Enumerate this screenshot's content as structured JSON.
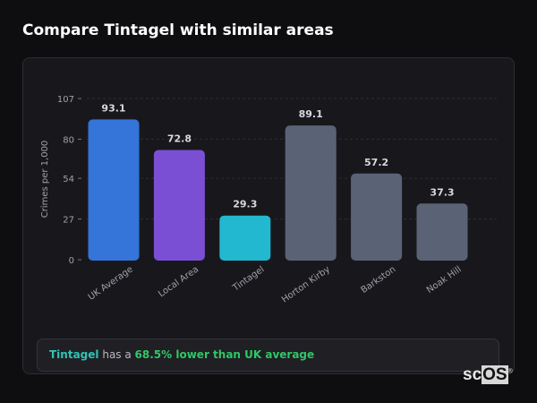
{
  "title": "Compare Tintagel with similar areas",
  "chart_data": {
    "type": "bar",
    "categories": [
      "UK Average",
      "Local Area",
      "Tintagel",
      "Horton Kirby",
      "Barkston",
      "Noak Hill"
    ],
    "values": [
      93.1,
      72.8,
      29.3,
      89.1,
      57.2,
      37.3
    ],
    "value_labels": [
      "93.1",
      "72.8",
      "29.3",
      "89.1",
      "57.2",
      "37.3"
    ],
    "colors": [
      "#3574d8",
      "#7b4fd4",
      "#22b8cf",
      "#5a6376",
      "#5a6376",
      "#5a6376"
    ],
    "ylabel": "Crimes per 1,000",
    "yticks": [
      0,
      27,
      54,
      80,
      107
    ],
    "ylim": [
      0,
      107
    ],
    "grid": true
  },
  "insight": {
    "area": "Tintagel",
    "middle": " has a ",
    "highlight": "68.5% lower than UK average"
  },
  "logo": {
    "text_a": "sc",
    "text_b": "OS",
    "mark": "®"
  }
}
